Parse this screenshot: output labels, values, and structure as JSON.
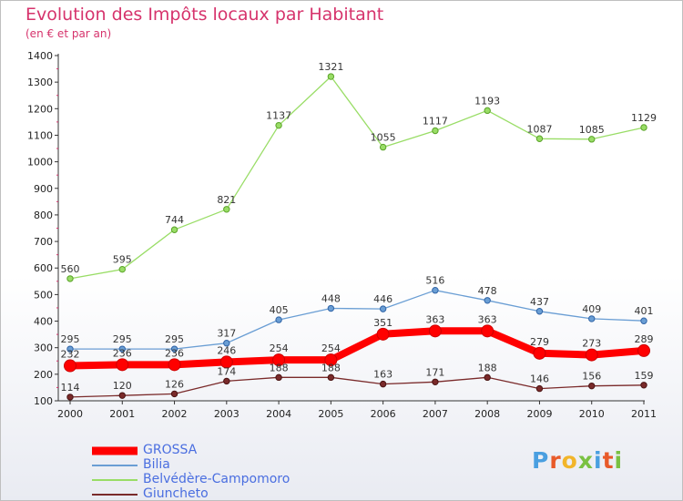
{
  "title": "Evolution des Impôts locaux par Habitant",
  "subtitle": "(en € et par an)",
  "logo": {
    "text": "Proxiti"
  },
  "chart_data": {
    "type": "line",
    "title": "Evolution des Impôts locaux par Habitant",
    "subtitle": "(en € et par an)",
    "xlabel": "",
    "ylabel": "",
    "categories": [
      "2000",
      "2001",
      "2002",
      "2003",
      "2004",
      "2005",
      "2006",
      "2007",
      "2008",
      "2009",
      "2010",
      "2011"
    ],
    "ylim": [
      100,
      1400
    ],
    "yticks": [
      100,
      200,
      300,
      400,
      500,
      600,
      700,
      800,
      900,
      1000,
      1100,
      1200,
      1300,
      1400
    ],
    "grid": false,
    "legend_position": "bottom-left",
    "series": [
      {
        "name": "GROSSA",
        "color": "#ff0000",
        "values": [
          232,
          236,
          236,
          246,
          254,
          254,
          351,
          363,
          363,
          279,
          273,
          289
        ]
      },
      {
        "name": "Bilia",
        "color": "#6a9ed4",
        "values": [
          295,
          295,
          295,
          317,
          405,
          448,
          446,
          516,
          478,
          437,
          409,
          401
        ]
      },
      {
        "name": "Belvédère-Campomoro",
        "color": "#99dd66",
        "values": [
          560,
          595,
          744,
          821,
          1137,
          1321,
          1055,
          1117,
          1193,
          1087,
          1085,
          1129
        ]
      },
      {
        "name": "Giuncheto",
        "color": "#7a2a2a",
        "values": [
          114,
          120,
          126,
          174,
          188,
          188,
          163,
          171,
          188,
          146,
          156,
          159
        ]
      }
    ]
  }
}
